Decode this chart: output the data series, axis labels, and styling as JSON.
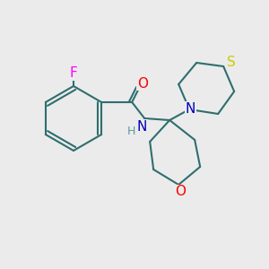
{
  "background_color": "#ebebeb",
  "bond_color": "#2f6e6e",
  "bond_lw": 1.5,
  "atom_colors": {
    "F": "#ff00ff",
    "O": "#ff0000",
    "N": "#0000bb",
    "S": "#cccc00",
    "C_bond": "#2f6e6e",
    "H": "#5a9a9a"
  },
  "font_size": 10,
  "font_size_small": 9
}
